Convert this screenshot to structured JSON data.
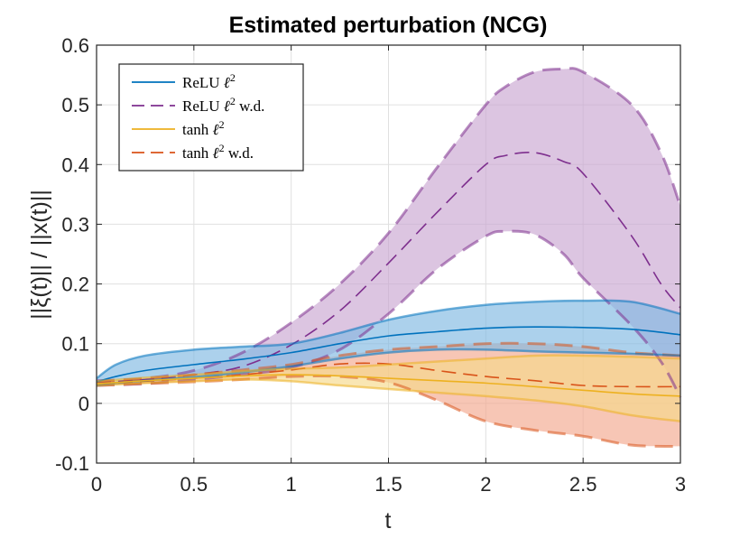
{
  "chart_data": {
    "type": "line",
    "title": "Estimated perturbation (NCG)",
    "xlabel": "t",
    "ylabel": "||ξ(t)|| / ||x(t)||",
    "xlim": [
      0,
      3
    ],
    "ylim": [
      -0.1,
      0.6
    ],
    "xticks": [
      0,
      0.5,
      1,
      1.5,
      2,
      2.5,
      3
    ],
    "yticks": [
      -0.1,
      0,
      0.1,
      0.2,
      0.3,
      0.4,
      0.5,
      0.6
    ],
    "xtick_labels": [
      "0",
      "0.5",
      "1",
      "1.5",
      "2",
      "2.5",
      "3"
    ],
    "ytick_labels": [
      "-0.1",
      "0",
      "0.1",
      "0.2",
      "0.3",
      "0.4",
      "0.5",
      "0.6"
    ],
    "grid": true,
    "legend_position": "top-left",
    "series": [
      {
        "name": "ReLU ℓ² w.d.",
        "legend_label": "ReLU ",
        "legend_suffix": " w.d.",
        "style": "dashed",
        "color": "#7E2F8E",
        "fill": "#c9a6d1",
        "x": [
          0,
          0.25,
          0.5,
          0.75,
          1.0,
          1.25,
          1.5,
          1.75,
          2.0,
          2.1,
          2.25,
          2.4,
          2.5,
          2.75,
          2.9,
          3.0
        ],
        "mean": [
          0.035,
          0.04,
          0.048,
          0.062,
          0.098,
          0.155,
          0.235,
          0.32,
          0.4,
          0.415,
          0.42,
          0.405,
          0.385,
          0.28,
          0.2,
          0.16
        ],
        "upper": [
          0.038,
          0.042,
          0.055,
          0.085,
          0.135,
          0.2,
          0.285,
          0.395,
          0.5,
          0.53,
          0.555,
          0.56,
          0.555,
          0.5,
          0.42,
          0.33
        ],
        "lower": [
          0.03,
          0.033,
          0.04,
          0.048,
          0.06,
          0.09,
          0.15,
          0.225,
          0.28,
          0.288,
          0.283,
          0.25,
          0.21,
          0.13,
          0.07,
          0.01
        ]
      },
      {
        "name": "tanh ℓ² w.d.",
        "legend_label": "tanh ",
        "legend_suffix": " w.d.",
        "style": "dashed",
        "color": "#D95319",
        "fill": "#f2a88e",
        "x": [
          0,
          0.25,
          0.5,
          0.75,
          1.0,
          1.25,
          1.5,
          1.75,
          2.0,
          2.25,
          2.5,
          2.75,
          3.0
        ],
        "mean": [
          0.033,
          0.037,
          0.042,
          0.048,
          0.056,
          0.066,
          0.066,
          0.055,
          0.045,
          0.038,
          0.03,
          0.028,
          0.028
        ],
        "upper": [
          0.036,
          0.041,
          0.048,
          0.056,
          0.065,
          0.08,
          0.09,
          0.095,
          0.1,
          0.1,
          0.095,
          0.085,
          0.08
        ],
        "lower": [
          0.03,
          0.033,
          0.036,
          0.04,
          0.045,
          0.045,
          0.035,
          0.005,
          -0.03,
          -0.045,
          -0.055,
          -0.07,
          -0.072
        ]
      },
      {
        "name": "ReLU ℓ²",
        "legend_label": "ReLU ",
        "legend_suffix": "",
        "style": "solid",
        "color": "#0072BD",
        "fill": "#7fb8e2",
        "x": [
          0,
          0.1,
          0.25,
          0.5,
          0.75,
          1.0,
          1.25,
          1.5,
          1.75,
          2.0,
          2.25,
          2.5,
          2.75,
          3.0
        ],
        "mean": [
          0.036,
          0.045,
          0.055,
          0.065,
          0.074,
          0.085,
          0.1,
          0.113,
          0.12,
          0.126,
          0.128,
          0.127,
          0.124,
          0.115
        ],
        "upper": [
          0.042,
          0.065,
          0.08,
          0.09,
          0.095,
          0.1,
          0.118,
          0.14,
          0.155,
          0.165,
          0.17,
          0.172,
          0.17,
          0.15
        ],
        "lower": [
          0.03,
          0.034,
          0.038,
          0.044,
          0.052,
          0.062,
          0.075,
          0.085,
          0.09,
          0.09,
          0.087,
          0.085,
          0.083,
          0.08
        ]
      },
      {
        "name": "tanh ℓ²",
        "legend_label": "tanh ",
        "legend_suffix": "",
        "style": "solid",
        "color": "#EDB120",
        "fill": "#f6d98a",
        "x": [
          0,
          0.25,
          0.5,
          0.75,
          1.0,
          1.25,
          1.5,
          1.75,
          2.0,
          2.25,
          2.5,
          2.75,
          3.0
        ],
        "mean": [
          0.033,
          0.038,
          0.042,
          0.046,
          0.048,
          0.046,
          0.042,
          0.038,
          0.034,
          0.028,
          0.022,
          0.016,
          0.012
        ],
        "upper": [
          0.037,
          0.043,
          0.048,
          0.054,
          0.058,
          0.06,
          0.065,
          0.07,
          0.075,
          0.08,
          0.08,
          0.078,
          0.075
        ],
        "lower": [
          0.03,
          0.034,
          0.037,
          0.04,
          0.037,
          0.03,
          0.024,
          0.018,
          0.012,
          0.005,
          -0.005,
          -0.02,
          -0.03
        ]
      }
    ]
  }
}
